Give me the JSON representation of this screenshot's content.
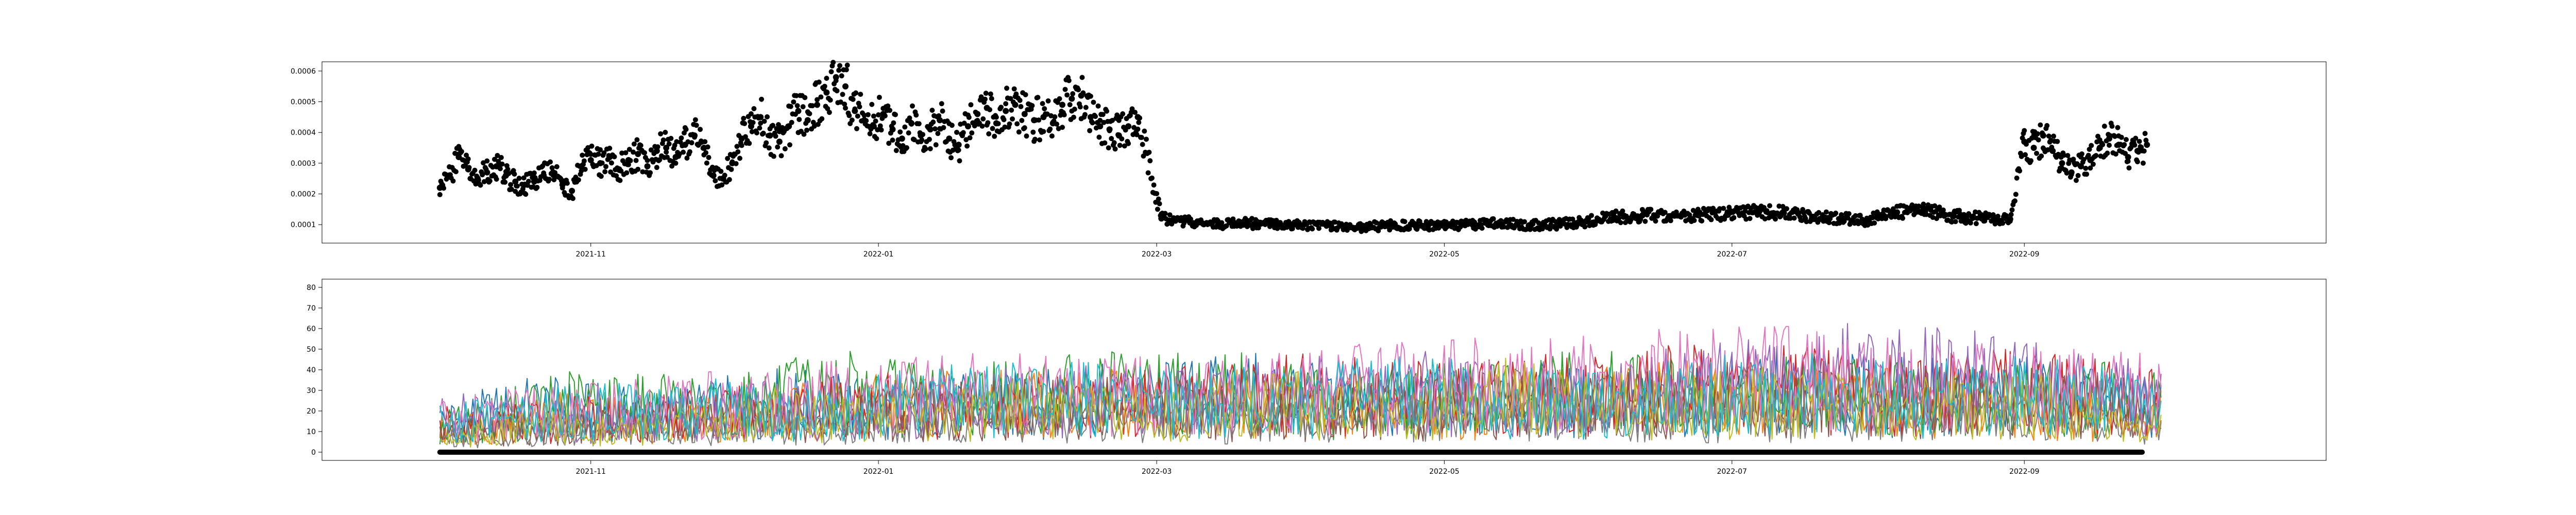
{
  "chart_data": [
    {
      "type": "scatter",
      "title": "",
      "xlabel": "",
      "ylabel": "",
      "marker_color": "#000000",
      "xlim": [
        "2021-09-05",
        "2022-11-04"
      ],
      "ylim": [
        4e-05,
        0.00063
      ],
      "xticks": [
        {
          "date": "2021-11-01",
          "label": "2021-11"
        },
        {
          "date": "2022-01-01",
          "label": "2022-01"
        },
        {
          "date": "2022-03-01",
          "label": "2022-03"
        },
        {
          "date": "2022-05-01",
          "label": "2022-05"
        },
        {
          "date": "2022-07-01",
          "label": "2022-07"
        },
        {
          "date": "2022-09-01",
          "label": "2022-09"
        }
      ],
      "yticks": [
        {
          "value": 0.0001,
          "label": "0.0001"
        },
        {
          "value": 0.0002,
          "label": "0.0002"
        },
        {
          "value": 0.0003,
          "label": "0.0003"
        },
        {
          "value": 0.0004,
          "label": "0.0004"
        },
        {
          "value": 0.0005,
          "label": "0.0005"
        },
        {
          "value": 0.0006,
          "label": "0.0006"
        }
      ],
      "series": [
        {
          "points": [
            [
              "2021-09-30",
              0.00022
            ],
            [
              "2021-10-02",
              0.00026
            ],
            [
              "2021-10-04",
              0.00032
            ],
            [
              "2021-10-06",
              0.00028
            ],
            [
              "2021-10-08",
              0.00025
            ],
            [
              "2021-10-10",
              0.00027
            ],
            [
              "2021-10-12",
              0.00029
            ],
            [
              "2021-10-14",
              0.00026
            ],
            [
              "2021-10-16",
              0.00024
            ],
            [
              "2021-10-18",
              0.00023
            ],
            [
              "2021-10-20",
              0.00024
            ],
            [
              "2021-10-22",
              0.00026
            ],
            [
              "2021-10-24",
              0.00027
            ],
            [
              "2021-10-26",
              0.00023
            ],
            [
              "2021-10-28",
              0.00021
            ],
            [
              "2021-10-30",
              0.00029
            ],
            [
              "2021-11-01",
              0.00031
            ],
            [
              "2021-11-03",
              0.0003
            ],
            [
              "2021-11-05",
              0.00032
            ],
            [
              "2021-11-07",
              0.00028
            ],
            [
              "2021-11-09",
              0.00031
            ],
            [
              "2021-11-11",
              0.00033
            ],
            [
              "2021-11-13",
              0.00029
            ],
            [
              "2021-11-15",
              0.00034
            ],
            [
              "2021-11-17",
              0.00035
            ],
            [
              "2021-11-19",
              0.00032
            ],
            [
              "2021-11-21",
              0.00036
            ],
            [
              "2021-11-23",
              0.00039
            ],
            [
              "2021-11-25",
              0.00035
            ],
            [
              "2021-11-27",
              0.00026
            ],
            [
              "2021-11-29",
              0.00025
            ],
            [
              "2021-12-01",
              0.0003
            ],
            [
              "2021-12-03",
              0.00038
            ],
            [
              "2021-12-05",
              0.00042
            ],
            [
              "2021-12-07",
              0.00045
            ],
            [
              "2021-12-09",
              0.00039
            ],
            [
              "2021-12-11",
              0.00037
            ],
            [
              "2021-12-13",
              0.00042
            ],
            [
              "2021-12-15",
              0.00047
            ],
            [
              "2021-12-17",
              0.00044
            ],
            [
              "2021-12-19",
              0.00049
            ],
            [
              "2021-12-21",
              0.00053
            ],
            [
              "2021-12-23",
              0.00058
            ],
            [
              "2021-12-25",
              0.00055
            ],
            [
              "2021-12-27",
              0.00047
            ],
            [
              "2021-12-29",
              0.00044
            ],
            [
              "2021-12-31",
              0.00042
            ],
            [
              "2022-01-02",
              0.00046
            ],
            [
              "2022-01-04",
              0.00041
            ],
            [
              "2022-01-06",
              0.00038
            ],
            [
              "2022-01-08",
              0.00043
            ],
            [
              "2022-01-10",
              0.00039
            ],
            [
              "2022-01-12",
              0.00041
            ],
            [
              "2022-01-14",
              0.00044
            ],
            [
              "2022-01-16",
              0.00038
            ],
            [
              "2022-01-18",
              0.00036
            ],
            [
              "2022-01-20",
              0.00042
            ],
            [
              "2022-01-22",
              0.00046
            ],
            [
              "2022-01-24",
              0.00048
            ],
            [
              "2022-01-26",
              0.00043
            ],
            [
              "2022-01-28",
              0.00047
            ],
            [
              "2022-01-30",
              0.00049
            ],
            [
              "2022-02-01",
              0.00046
            ],
            [
              "2022-02-03",
              0.00044
            ],
            [
              "2022-02-05",
              0.00045
            ],
            [
              "2022-02-07",
              0.00043
            ],
            [
              "2022-02-09",
              0.00049
            ],
            [
              "2022-02-11",
              0.00051
            ],
            [
              "2022-02-13",
              0.00052
            ],
            [
              "2022-02-15",
              0.00045
            ],
            [
              "2022-02-17",
              0.00042
            ],
            [
              "2022-02-19",
              0.00041
            ],
            [
              "2022-02-21",
              0.00039
            ],
            [
              "2022-02-23",
              0.00042
            ],
            [
              "2022-02-25",
              0.00045
            ],
            [
              "2022-03-02",
              0.00012
            ],
            [
              "2022-03-08",
              0.00011
            ],
            [
              "2022-03-14",
              0.0001
            ],
            [
              "2022-03-20",
              0.000105
            ],
            [
              "2022-03-26",
              0.0001
            ],
            [
              "2022-04-01",
              9.8e-05
            ],
            [
              "2022-04-07",
              9.5e-05
            ],
            [
              "2022-04-13",
              9.2e-05
            ],
            [
              "2022-04-19",
              9.7e-05
            ],
            [
              "2022-04-25",
              0.0001
            ],
            [
              "2022-05-01",
              9.6e-05
            ],
            [
              "2022-05-07",
              0.0001
            ],
            [
              "2022-05-13",
              0.000104
            ],
            [
              "2022-05-19",
              9.8e-05
            ],
            [
              "2022-05-25",
              0.000102
            ],
            [
              "2022-05-31",
              0.00011
            ],
            [
              "2022-06-06",
              0.000125
            ],
            [
              "2022-06-12",
              0.00013
            ],
            [
              "2022-06-18",
              0.000128
            ],
            [
              "2022-06-24",
              0.000132
            ],
            [
              "2022-06-30",
              0.000135
            ],
            [
              "2022-07-06",
              0.000142
            ],
            [
              "2022-07-12",
              0.000138
            ],
            [
              "2022-07-18",
              0.000126
            ],
            [
              "2022-07-24",
              0.00012
            ],
            [
              "2022-07-30",
              0.000115
            ],
            [
              "2022-08-05",
              0.00014
            ],
            [
              "2022-08-11",
              0.000145
            ],
            [
              "2022-08-17",
              0.000128
            ],
            [
              "2022-08-23",
              0.00012
            ],
            [
              "2022-08-29",
              0.000118
            ],
            [
              "2022-09-01",
              0.00037
            ],
            [
              "2022-09-03",
              0.00035
            ],
            [
              "2022-09-05",
              0.00039
            ],
            [
              "2022-09-07",
              0.00034
            ],
            [
              "2022-09-09",
              0.0003
            ],
            [
              "2022-09-11",
              0.00027
            ],
            [
              "2022-09-13",
              0.00029
            ],
            [
              "2022-09-15",
              0.00031
            ],
            [
              "2022-09-17",
              0.00035
            ],
            [
              "2022-09-19",
              0.00038
            ],
            [
              "2022-09-21",
              0.00036
            ],
            [
              "2022-09-23",
              0.00032
            ],
            [
              "2022-09-25",
              0.00034
            ],
            [
              "2022-09-27",
              0.00036
            ]
          ]
        }
      ]
    },
    {
      "type": "line",
      "title": "",
      "xlabel": "",
      "ylabel": "",
      "xlim": [
        "2021-09-05",
        "2022-11-04"
      ],
      "ylim": [
        -4,
        84
      ],
      "xticks": [
        {
          "date": "2021-11-01",
          "label": "2021-11"
        },
        {
          "date": "2022-01-01",
          "label": "2022-01"
        },
        {
          "date": "2022-03-01",
          "label": "2022-03"
        },
        {
          "date": "2022-05-01",
          "label": "2022-05"
        },
        {
          "date": "2022-07-01",
          "label": "2022-07"
        },
        {
          "date": "2022-09-01",
          "label": "2022-09"
        }
      ],
      "yticks": [
        {
          "value": 0,
          "label": "0"
        },
        {
          "value": 10,
          "label": "10"
        },
        {
          "value": 20,
          "label": "20"
        },
        {
          "value": 30,
          "label": "30"
        },
        {
          "value": 40,
          "label": "40"
        },
        {
          "value": 50,
          "label": "50"
        },
        {
          "value": 60,
          "label": "60"
        },
        {
          "value": 70,
          "label": "70"
        },
        {
          "value": 80,
          "label": "80"
        }
      ],
      "baseline": {
        "y": 0,
        "from": "2021-09-30",
        "to": "2022-09-26",
        "color": "#000000"
      },
      "series": [
        {
          "color": "#1f77b4",
          "x": [
            "2021-09-30",
            "2021-10-20",
            "2021-11-15",
            "2021-12-10",
            "2022-01-05",
            "2022-02-01",
            "2022-03-01",
            "2022-03-28",
            "2022-04-25",
            "2022-05-20",
            "2022-06-15",
            "2022-07-10",
            "2022-08-05",
            "2022-09-01",
            "2022-09-30"
          ],
          "y": [
            25,
            38,
            30,
            42,
            36,
            40,
            45,
            50,
            38,
            44,
            40,
            52,
            46,
            48,
            35
          ]
        },
        {
          "color": "#ff7f0e",
          "x": [
            "2021-09-30",
            "2021-10-25",
            "2021-11-20",
            "2021-12-15",
            "2022-01-10",
            "2022-02-05",
            "2022-03-05",
            "2022-04-01",
            "2022-04-28",
            "2022-05-25",
            "2022-06-20",
            "2022-07-15",
            "2022-08-10",
            "2022-09-05",
            "2022-09-30"
          ],
          "y": [
            18,
            30,
            26,
            34,
            40,
            44,
            38,
            42,
            36,
            40,
            45,
            39,
            43,
            37,
            30
          ]
        },
        {
          "color": "#2ca02c",
          "x": [
            "2021-09-30",
            "2021-10-28",
            "2021-11-25",
            "2021-12-22",
            "2022-01-18",
            "2022-02-14",
            "2022-03-12",
            "2022-04-08",
            "2022-05-05",
            "2022-06-01",
            "2022-06-28",
            "2022-07-25",
            "2022-08-20",
            "2022-09-15",
            "2022-09-30"
          ],
          "y": [
            20,
            42,
            36,
            50,
            44,
            48,
            52,
            40,
            46,
            50,
            44,
            48,
            42,
            46,
            38
          ]
        },
        {
          "color": "#d62728",
          "x": [
            "2021-09-30",
            "2021-11-01",
            "2021-12-01",
            "2022-01-01",
            "2022-02-01",
            "2022-03-01",
            "2022-04-01",
            "2022-05-01",
            "2022-06-01",
            "2022-07-01",
            "2022-08-01",
            "2022-09-01",
            "2022-09-30"
          ],
          "y": [
            22,
            28,
            32,
            40,
            36,
            42,
            48,
            44,
            50,
            55,
            47,
            52,
            40
          ]
        },
        {
          "color": "#9467bd",
          "x": [
            "2021-09-30",
            "2021-10-30",
            "2021-11-30",
            "2021-12-30",
            "2022-01-30",
            "2022-02-28",
            "2022-03-30",
            "2022-04-30",
            "2022-05-30",
            "2022-06-30",
            "2022-07-30",
            "2022-08-30",
            "2022-09-30"
          ],
          "y": [
            30,
            26,
            34,
            38,
            44,
            40,
            46,
            50,
            42,
            56,
            64,
            58,
            44
          ]
        },
        {
          "color": "#8c564b",
          "x": [
            "2021-09-30",
            "2021-11-05",
            "2021-12-10",
            "2022-01-15",
            "2022-02-20",
            "2022-03-25",
            "2022-04-30",
            "2022-06-05",
            "2022-07-10",
            "2022-08-15",
            "2022-09-20",
            "2022-09-30"
          ],
          "y": [
            16,
            24,
            30,
            34,
            38,
            32,
            36,
            40,
            46,
            42,
            38,
            30
          ]
        },
        {
          "color": "#e377c2",
          "x": [
            "2021-09-30",
            "2021-11-10",
            "2021-12-20",
            "2022-01-30",
            "2022-03-10",
            "2022-04-20",
            "2022-05-30",
            "2022-07-10",
            "2022-08-20",
            "2022-09-30"
          ],
          "y": [
            28,
            36,
            44,
            52,
            46,
            54,
            58,
            62,
            55,
            48
          ]
        },
        {
          "color": "#7f7f7f",
          "x": [
            "2021-09-30",
            "2021-11-15",
            "2021-12-30",
            "2022-02-14",
            "2022-03-31",
            "2022-05-15",
            "2022-06-30",
            "2022-08-15",
            "2022-09-30"
          ],
          "y": [
            12,
            18,
            22,
            26,
            24,
            28,
            30,
            27,
            22
          ]
        },
        {
          "color": "#bcbd22",
          "x": [
            "2021-09-30",
            "2021-10-20",
            "2021-11-15",
            "2021-12-10",
            "2022-01-05",
            "2022-02-01",
            "2022-03-01",
            "2022-03-28",
            "2022-04-25",
            "2022-05-20",
            "2022-06-15",
            "2022-07-10",
            "2022-08-05",
            "2022-09-01",
            "2022-09-30"
          ],
          "y": [
            10,
            22,
            18,
            32,
            28,
            35,
            30,
            40,
            34,
            50,
            38,
            42,
            36,
            40,
            28
          ]
        },
        {
          "color": "#17becf",
          "x": [
            "2021-09-30",
            "2021-10-25",
            "2021-11-20",
            "2021-12-15",
            "2022-01-10",
            "2022-02-05",
            "2022-03-05",
            "2022-04-01",
            "2022-04-28",
            "2022-05-25",
            "2022-06-20",
            "2022-07-15",
            "2022-08-10",
            "2022-09-05",
            "2022-09-30"
          ],
          "y": [
            24,
            34,
            38,
            30,
            42,
            46,
            40,
            44,
            48,
            40,
            46,
            50,
            44,
            48,
            36
          ]
        }
      ]
    }
  ]
}
